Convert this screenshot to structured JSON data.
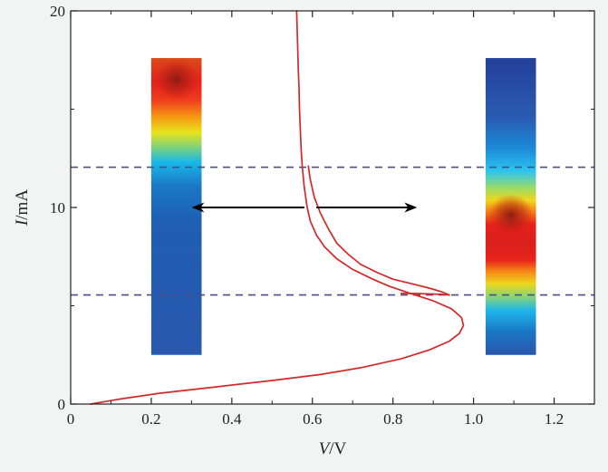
{
  "chart_data": {
    "type": "line",
    "xlabel_var": "V",
    "xlabel_unit": "/V",
    "ylabel_var": "I",
    "ylabel_unit": "/mA",
    "xlim": [
      0,
      1.3
    ],
    "ylim": [
      0,
      20
    ],
    "x_ticks": [
      0,
      0.2,
      0.4,
      0.6,
      0.8,
      1.0,
      1.2
    ],
    "x_tick_labels": [
      "0",
      "0.2",
      "0.4",
      "0.6",
      "0.8",
      "1.0",
      "1.2"
    ],
    "y_ticks": [
      0,
      10,
      20
    ],
    "y_tick_labels": [
      "0",
      "10",
      "20"
    ],
    "grid": false,
    "legend": "none",
    "series": [
      {
        "color": "#d62728",
        "x": [
          0.05,
          0.12,
          0.22,
          0.35,
          0.5,
          0.62,
          0.72,
          0.82,
          0.89,
          0.94,
          0.965,
          0.975,
          0.97,
          0.945,
          0.9,
          0.84,
          0.79,
          0.75,
          0.7,
          0.66,
          0.63,
          0.61,
          0.595,
          0.587,
          0.58,
          0.575,
          0.572,
          0.57,
          0.568,
          0.567,
          0.565,
          0.563,
          0.561
        ],
        "y": [
          0.0,
          0.25,
          0.55,
          0.85,
          1.2,
          1.5,
          1.85,
          2.3,
          2.75,
          3.2,
          3.6,
          4.0,
          4.4,
          4.85,
          5.25,
          5.65,
          6.0,
          6.35,
          6.85,
          7.4,
          8.0,
          8.6,
          9.3,
          10.0,
          11.0,
          12.0,
          13.0,
          14.0,
          15.0,
          16.0,
          17.0,
          18.5,
          20.0
        ]
      },
      {
        "color": "#d62728",
        "x": [
          0.94,
          0.92,
          0.89,
          0.85,
          0.8,
          0.76,
          0.72,
          0.69,
          0.66,
          0.64,
          0.62,
          0.605,
          0.595,
          0.59
        ],
        "y": [
          5.55,
          5.72,
          5.9,
          6.1,
          6.35,
          6.7,
          7.1,
          7.6,
          8.2,
          8.9,
          9.7,
          10.5,
          11.4,
          12.1
        ]
      },
      {
        "color": "#d62728",
        "x": [
          0.94,
          0.92,
          0.89,
          0.86,
          0.82
        ],
        "y": [
          5.55,
          5.58,
          5.6,
          5.62,
          5.63
        ]
      }
    ],
    "reference_lines": [
      {
        "axis": "y",
        "value": 12.05,
        "style": "dashed",
        "color": "#4a4f8a"
      },
      {
        "axis": "y",
        "value": 5.55,
        "style": "dashed",
        "color": "#4a4f8a"
      }
    ],
    "arrows": [
      {
        "from": [
          0.58,
          10.0
        ],
        "to": [
          0.3,
          10.0
        ],
        "color": "#000000"
      },
      {
        "from": [
          0.61,
          10.0
        ],
        "to": [
          0.86,
          10.0
        ],
        "color": "#000000"
      }
    ],
    "insets": [
      {
        "name": "left-heatmap-column",
        "x_range": [
          0.2,
          0.325
        ],
        "y_range": [
          2.5,
          17.6
        ],
        "hotspot_y": 16.5
      },
      {
        "name": "right-heatmap-column",
        "x_range": [
          1.03,
          1.155
        ],
        "y_range": [
          2.5,
          17.6
        ],
        "hotspot_y": 9.6
      }
    ]
  }
}
